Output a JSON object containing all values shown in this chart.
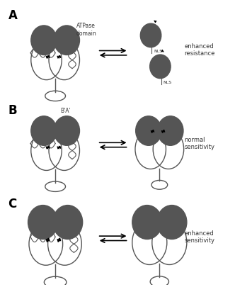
{
  "title": "",
  "background_color": "#ffffff",
  "panel_labels": [
    "A",
    "B",
    "C"
  ],
  "panel_label_fontsize": 12,
  "dark_gray": "#555555",
  "text_color": "#333333",
  "label_ATPase": "ATPase\ndomain",
  "label_BA": "B'A'",
  "label_NLS": "NLS",
  "label_enhanced_resistance": "enhanced\nresistance",
  "label_normal_sensitivity": "normal\nsensitivity",
  "label_enhanced_sensitivity": "enhanced\nsensitivity"
}
